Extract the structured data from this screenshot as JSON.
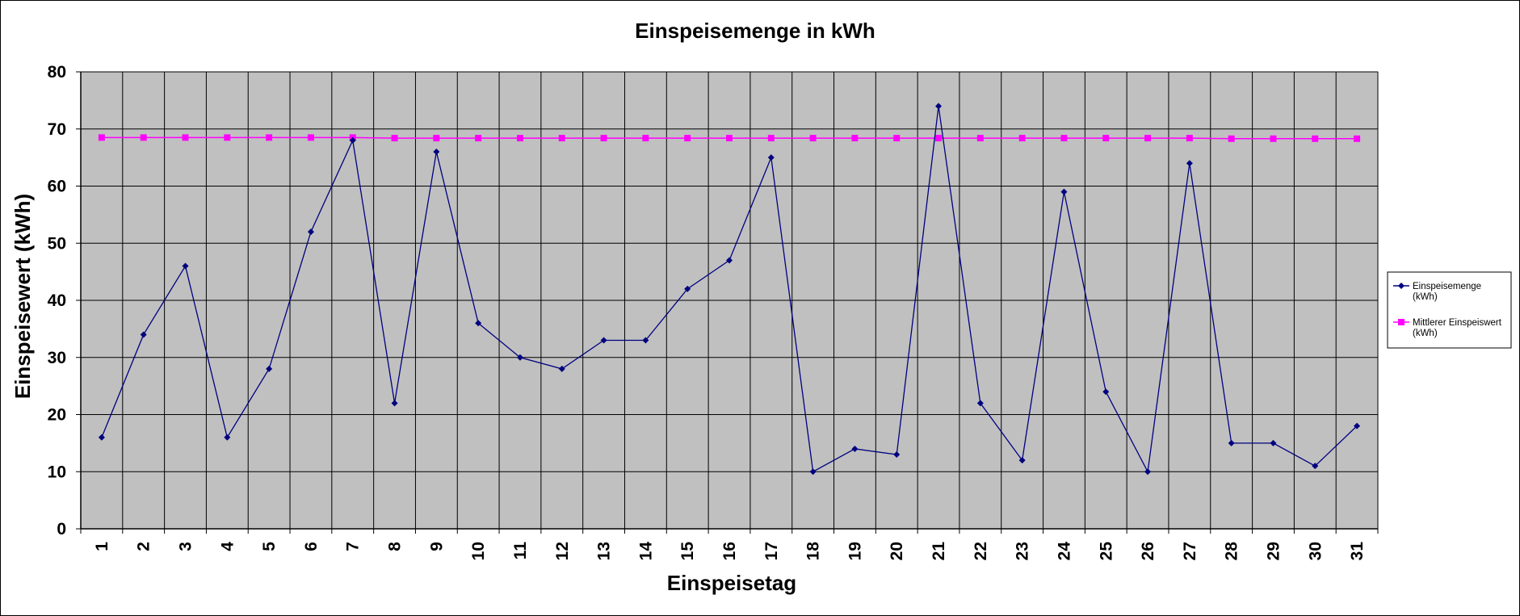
{
  "chart_data": {
    "type": "line",
    "title": "Einspeisemenge in kWh",
    "xlabel": "Einspeisetag",
    "ylabel": "Einspeisewert  (kWh)",
    "categories": [
      "1",
      "2",
      "3",
      "4",
      "5",
      "6",
      "7",
      "8",
      "9",
      "10",
      "11",
      "12",
      "13",
      "14",
      "15",
      "16",
      "17",
      "18",
      "19",
      "20",
      "21",
      "22",
      "23",
      "24",
      "25",
      "26",
      "27",
      "28",
      "29",
      "30",
      "31"
    ],
    "ylim": [
      0,
      80
    ],
    "yticks": [
      0,
      10,
      20,
      30,
      40,
      50,
      60,
      70,
      80
    ],
    "grid": true,
    "plot_background": "#c0c0c0",
    "legend_position": "right",
    "series": [
      {
        "name": "Einspeisemenge (kWh)",
        "legend_lines": [
          "Einspeisemenge",
          "(kWh)"
        ],
        "color": "#000080",
        "marker": "diamond",
        "values": [
          16,
          34,
          46,
          16,
          28,
          52,
          68,
          22,
          66,
          36,
          30,
          28,
          33,
          33,
          42,
          47,
          65,
          10,
          14,
          13,
          74,
          22,
          12,
          59,
          24,
          10,
          64,
          15,
          15,
          11,
          18
        ]
      },
      {
        "name": "Mittlerer Einspeiswert (kWh)",
        "legend_lines": [
          "Mittlerer Einspeiswert",
          "(kWh)"
        ],
        "color": "#ff00ff",
        "marker": "square",
        "values": [
          68.5,
          68.5,
          68.5,
          68.5,
          68.5,
          68.5,
          68.5,
          68.4,
          68.4,
          68.4,
          68.4,
          68.4,
          68.4,
          68.4,
          68.4,
          68.4,
          68.4,
          68.4,
          68.4,
          68.4,
          68.4,
          68.4,
          68.4,
          68.4,
          68.4,
          68.4,
          68.4,
          68.3,
          68.3,
          68.3,
          68.3
        ]
      }
    ]
  }
}
